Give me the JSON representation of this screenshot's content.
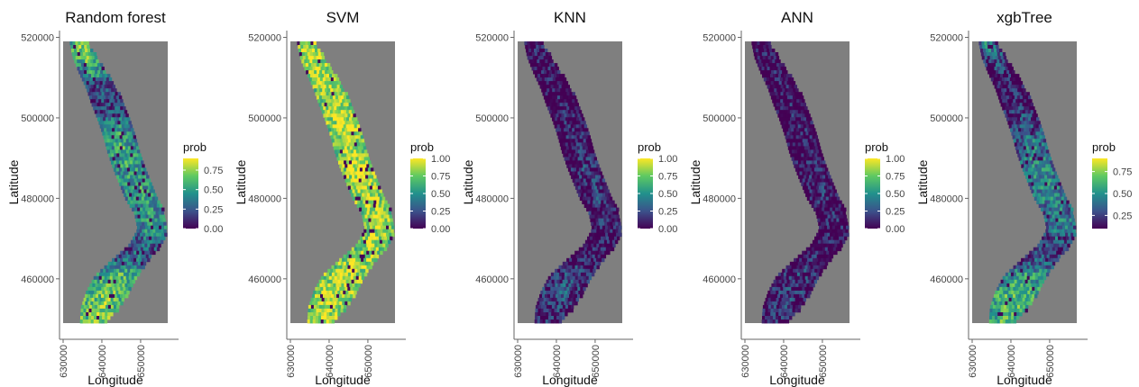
{
  "chart_data": [
    {
      "type": "heatmap",
      "title": "Random forest",
      "xlabel": "Longitude",
      "ylabel": "Latitude",
      "xlim": [
        630000,
        657000
      ],
      "ylim": [
        449000,
        519000
      ],
      "x_ticks": [
        "630000",
        "640000",
        "650000"
      ],
      "y_ticks": [
        "460000",
        "480000",
        "500000",
        "520000"
      ],
      "legend": {
        "title": "prob",
        "ticks": [
          "0.00",
          "0.25",
          "0.50",
          "0.75"
        ],
        "range": [
          0,
          0.9
        ]
      },
      "profile": [
        0.8,
        0.75,
        0.55,
        0.25,
        0.25,
        0.45,
        0.6,
        0.62,
        0.62,
        0.6,
        0.6,
        0.55,
        0.55,
        0.35,
        0.4,
        0.7,
        0.75,
        0.82,
        0.85
      ]
    },
    {
      "type": "heatmap",
      "title": "SVM",
      "xlabel": "Longitude",
      "ylabel": "Latitude",
      "xlim": [
        630000,
        657000
      ],
      "ylim": [
        449000,
        519000
      ],
      "x_ticks": [
        "630000",
        "640000",
        "650000"
      ],
      "y_ticks": [
        "460000",
        "480000",
        "500000",
        "520000"
      ],
      "legend": {
        "title": "prob",
        "ticks": [
          "0.00",
          "0.25",
          "0.50",
          "0.75",
          "1.00"
        ],
        "range": [
          0,
          1
        ]
      },
      "profile": [
        0.95,
        0.93,
        0.92,
        0.9,
        0.92,
        0.93,
        0.93,
        0.92,
        0.92,
        0.93,
        0.92,
        0.9,
        0.9,
        0.88,
        0.9,
        0.92,
        0.93,
        0.93,
        0.92
      ]
    },
    {
      "type": "heatmap",
      "title": "KNN",
      "xlabel": "Longitude",
      "ylabel": "Latitude",
      "xlim": [
        630000,
        657000
      ],
      "ylim": [
        449000,
        519000
      ],
      "x_ticks": [
        "630000",
        "640000",
        "650000"
      ],
      "y_ticks": [
        "460000",
        "480000",
        "500000",
        "520000"
      ],
      "legend": {
        "title": "prob",
        "ticks": [
          "0.00",
          "0.25",
          "0.50",
          "0.75",
          "1.00"
        ],
        "range": [
          0,
          1
        ]
      },
      "profile": [
        0.15,
        0.12,
        0.1,
        0.1,
        0.1,
        0.12,
        0.14,
        0.15,
        0.18,
        0.2,
        0.2,
        0.18,
        0.15,
        0.1,
        0.15,
        0.25,
        0.28,
        0.22,
        0.18
      ]
    },
    {
      "type": "heatmap",
      "title": "ANN",
      "xlabel": "Longitude",
      "ylabel": "Latitude",
      "xlim": [
        630000,
        657000
      ],
      "ylim": [
        449000,
        519000
      ],
      "x_ticks": [
        "630000",
        "640000",
        "650000"
      ],
      "y_ticks": [
        "460000",
        "480000",
        "500000",
        "520000"
      ],
      "legend": {
        "title": "prob",
        "ticks": [
          "0.00",
          "0.25",
          "0.50",
          "0.75",
          "1.00"
        ],
        "range": [
          0,
          1
        ]
      },
      "profile": [
        0.12,
        0.1,
        0.08,
        0.08,
        0.08,
        0.1,
        0.12,
        0.12,
        0.15,
        0.15,
        0.15,
        0.14,
        0.12,
        0.08,
        0.12,
        0.2,
        0.22,
        0.18,
        0.14
      ]
    },
    {
      "type": "heatmap",
      "title": "xgbTree",
      "xlabel": "Longitude",
      "ylabel": "Latitude",
      "xlim": [
        630000,
        657000
      ],
      "ylim": [
        449000,
        519000
      ],
      "x_ticks": [
        "630000",
        "640000",
        "650000"
      ],
      "y_ticks": [
        "460000",
        "480000",
        "500000",
        "520000"
      ],
      "legend": {
        "title": "prob",
        "ticks": [
          "0.25",
          "0.50",
          "0.75"
        ],
        "range": [
          0.1,
          0.9
        ]
      },
      "profile": [
        0.5,
        0.35,
        0.15,
        0.12,
        0.12,
        0.3,
        0.4,
        0.45,
        0.5,
        0.5,
        0.48,
        0.45,
        0.45,
        0.25,
        0.3,
        0.6,
        0.7,
        0.72,
        0.7
      ]
    }
  ],
  "colors": {
    "panel_bg": "#7f7f7f",
    "viridis": [
      "#440154",
      "#3b528b",
      "#21918c",
      "#5ec962",
      "#fde725"
    ]
  }
}
